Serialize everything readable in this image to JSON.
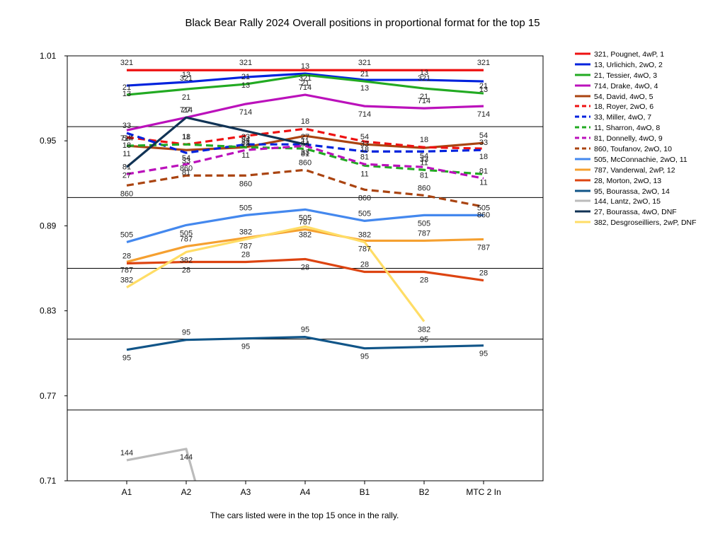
{
  "chart_data": {
    "type": "line",
    "title": "Black Bear Rally 2024  Overall positions in proportional format for the top 15",
    "caption": "The cars listed were in the top 15 once in the rally.",
    "categories": [
      "A1",
      "A2",
      "A3",
      "A4",
      "B1",
      "B2",
      "MTC 2 In"
    ],
    "ylim": [
      0.71,
      1.01
    ],
    "yticks": [
      "1.01",
      "0.95",
      "0.89",
      "0.83",
      "0.77",
      "0.71"
    ],
    "grid": true,
    "legend_position": "right",
    "series": [
      {
        "name": "321, Pougnet, 4wP, 1",
        "label": "321",
        "color": "#ee1111",
        "dash": false,
        "values": [
          0.9999,
          0.9999,
          0.9999,
          0.9999,
          0.9999,
          0.9999,
          0.9999
        ]
      },
      {
        "name": "13, Urlichich, 2wO, 2",
        "label": "13",
        "color": "#0022dd",
        "dash": false,
        "values": [
          0.989,
          0.9915,
          0.995,
          0.9975,
          0.993,
          0.993,
          0.992
        ]
      },
      {
        "name": "21, Tessier, 4wO, 3",
        "label": "21",
        "color": "#22aa22",
        "dash": false,
        "values": [
          0.9825,
          0.9865,
          0.99,
          0.9965,
          0.992,
          0.987,
          0.9835
        ]
      },
      {
        "name": "714, Drake, 4wO, 4",
        "label": "714",
        "color": "#bb11bb",
        "dash": false,
        "values": [
          0.9575,
          0.9665,
          0.976,
          0.9825,
          0.9745,
          0.973,
          0.9745
        ]
      },
      {
        "name": "54, David, 4wO, 5",
        "label": "54",
        "color": "#aa4411",
        "dash": false,
        "values": [
          0.9465,
          0.9435,
          0.9455,
          0.9535,
          0.9475,
          0.945,
          0.9485
        ]
      },
      {
        "name": "18, Royer, 2wO, 6",
        "label": "18",
        "color": "#ee1111",
        "dash": true,
        "values": [
          0.9525,
          0.9475,
          0.9535,
          0.9585,
          0.9495,
          0.9455,
          0.9445
        ]
      },
      {
        "name": "33, Miller, 4wO, 7",
        "label": "33",
        "color": "#0022dd",
        "dash": true,
        "values": [
          0.9555,
          0.9415,
          0.9475,
          0.9475,
          0.9425,
          0.9425,
          0.9435
        ]
      },
      {
        "name": "11, Sharron, 4wO, 8",
        "label": "11",
        "color": "#22aa22",
        "dash": true,
        "values": [
          0.9465,
          0.9475,
          0.9455,
          0.9445,
          0.9325,
          0.9295,
          0.9265
        ]
      },
      {
        "name": "81, Donnelly, 4wO, 9",
        "label": "81",
        "color": "#bb11bb",
        "dash": true,
        "values": [
          0.9265,
          0.9335,
          0.9435,
          0.9465,
          0.9335,
          0.9315,
          0.9235
        ]
      },
      {
        "name": "860, Toufanov, 2wO, 10",
        "label": "860",
        "color": "#aa4411",
        "dash": true,
        "values": [
          0.9185,
          0.9255,
          0.9255,
          0.9295,
          0.9155,
          0.9115,
          0.9035
        ]
      },
      {
        "name": "505, McConnachie, 2wO, 11",
        "label": "505",
        "color": "#4488ee",
        "dash": false,
        "values": [
          0.8785,
          0.8905,
          0.8975,
          0.9015,
          0.8935,
          0.8975,
          0.8975
        ]
      },
      {
        "name": "787, Vanderwal, 2wP, 12",
        "label": "787",
        "color": "#f5a030",
        "dash": false,
        "values": [
          0.8645,
          0.8755,
          0.8815,
          0.8875,
          0.8795,
          0.8795,
          0.8805
        ]
      },
      {
        "name": "28, Morton, 2wO, 13",
        "label": "28",
        "color": "#dd4411",
        "dash": false,
        "values": [
          0.8635,
          0.8645,
          0.8645,
          0.8665,
          0.8575,
          0.8575,
          0.8515
        ]
      },
      {
        "name": "95, Bourassa, 2wO, 14",
        "label": "95",
        "color": "#115588",
        "dash": false,
        "values": [
          0.8025,
          0.8095,
          0.8105,
          0.8115,
          0.8035,
          0.8045,
          0.8055
        ]
      },
      {
        "name": "144, Lantz, 2wO, 15",
        "label": "144",
        "color": "#bbbbbb",
        "dash": false,
        "values": [
          0.7245,
          0.7325,
          null,
          null,
          null,
          null,
          null
        ],
        "exit": 0.71
      },
      {
        "name": "27, Bourassa, 4wO,  DNF",
        "label": "27",
        "color": "#113355",
        "dash": false,
        "values": [
          0.9315,
          0.9665,
          null,
          0.9475,
          null,
          null,
          null
        ]
      },
      {
        "name": "382, Desgroseilliers, 2wP, DNF",
        "label": "382",
        "color": "#ffdd66",
        "dash": false,
        "values": [
          0.8465,
          0.8715,
          0.8805,
          0.8895,
          0.8785,
          0.8225,
          null
        ]
      }
    ]
  }
}
